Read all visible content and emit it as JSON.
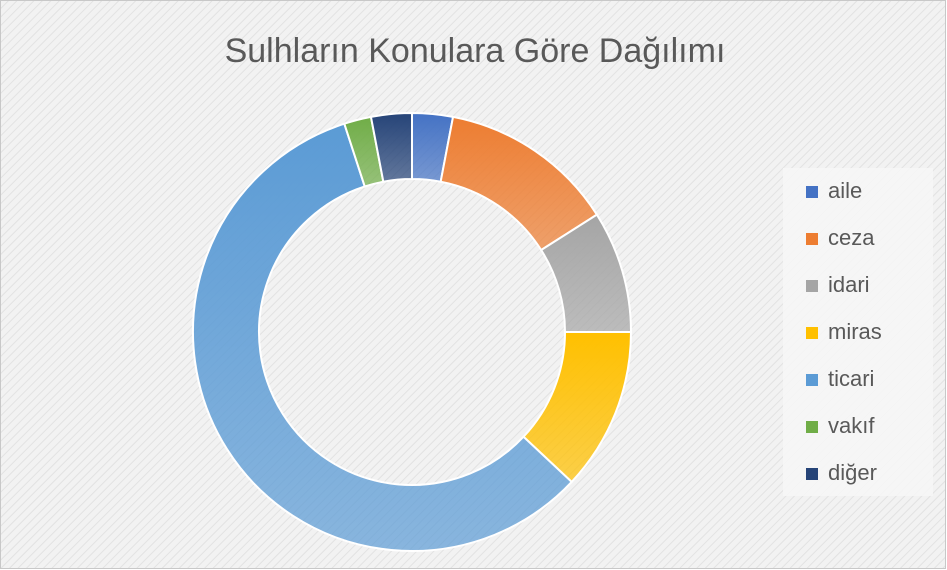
{
  "chart_data": {
    "type": "doughnut",
    "title": "Sulhların Konulara Göre Dağılımı",
    "categories": [
      "aile",
      "ceza",
      "idari",
      "miras",
      "ticari",
      "vakıf",
      "diğer"
    ],
    "values": [
      3,
      13,
      9,
      12,
      58,
      2,
      3
    ],
    "colors": [
      "#4472c4",
      "#ed7d31",
      "#a5a5a5",
      "#ffc000",
      "#5b9bd5",
      "#70ad47",
      "#264478"
    ],
    "legend": "right"
  }
}
